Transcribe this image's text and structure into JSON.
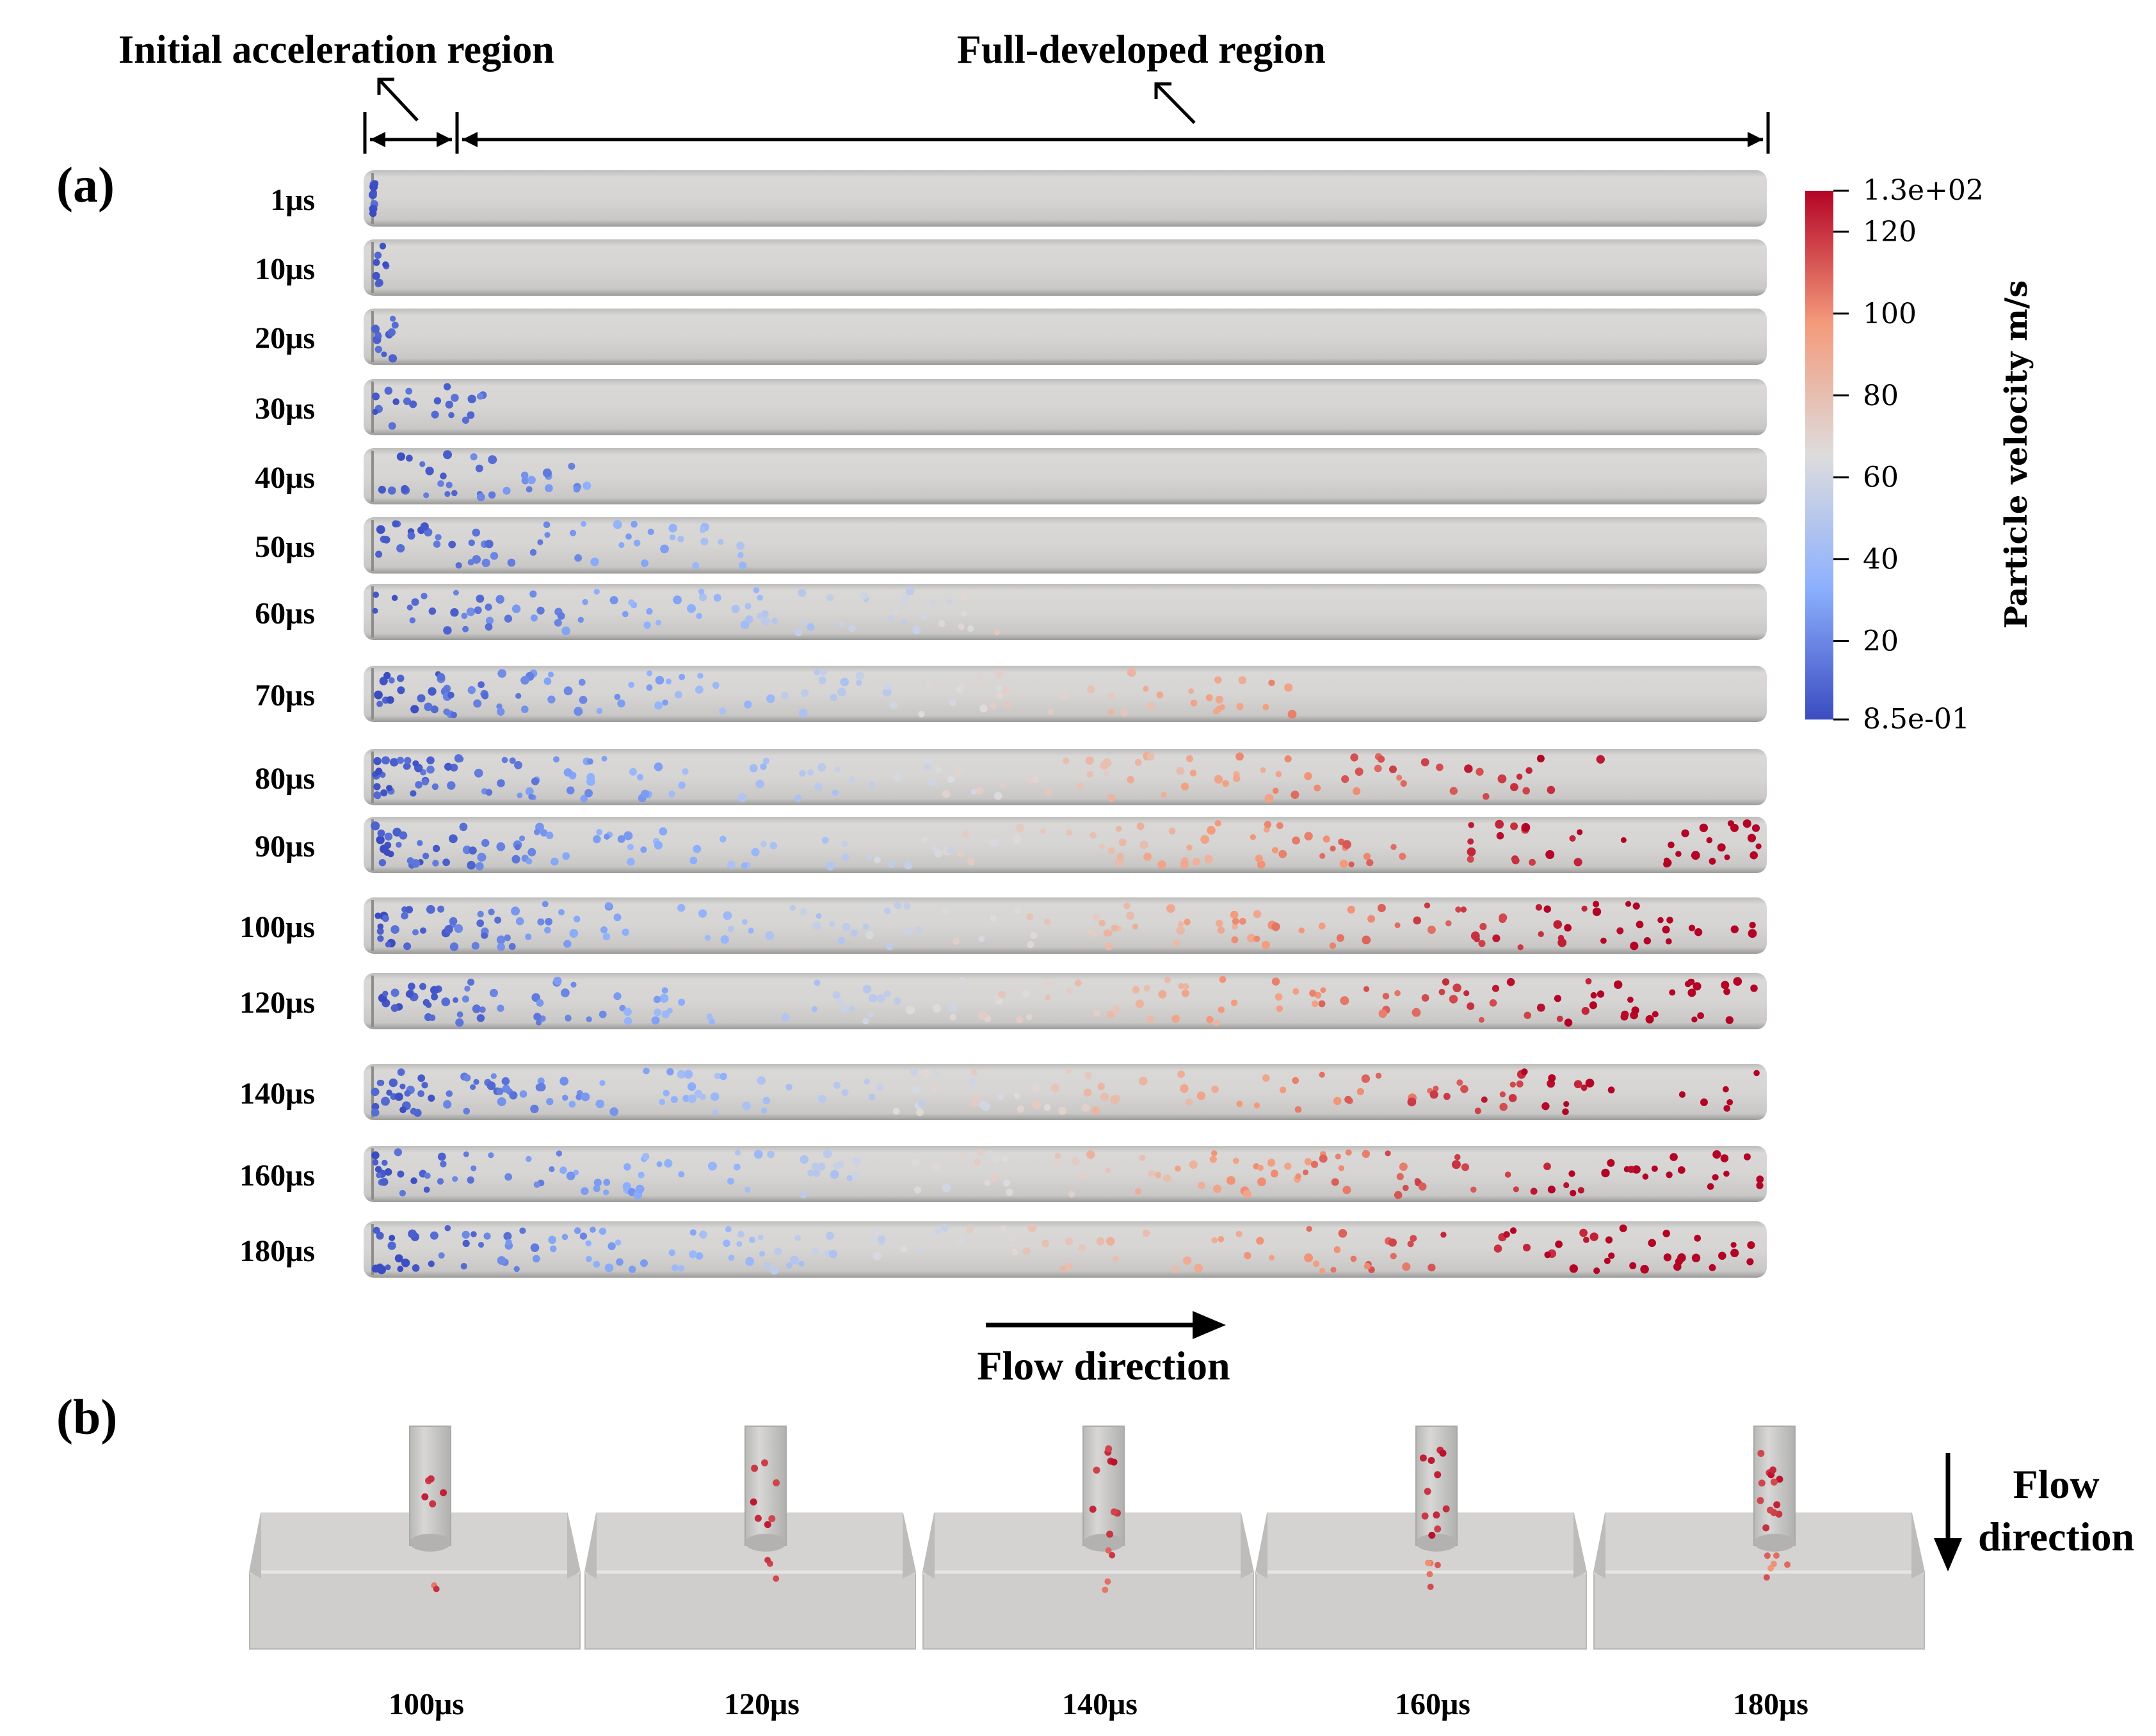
{
  "panel_a": {
    "label": "(a)",
    "region_initial": "Initial acceleration region",
    "region_full": "Full-developed region",
    "flow_label": "Flow direction",
    "time_labels": [
      "1μs",
      "10μs",
      "20μs",
      "30μs",
      "40μs",
      "50μs",
      "60μs",
      "70μs",
      "80μs",
      "90μs",
      "100μs",
      "120μs",
      "140μs",
      "160μs",
      "180μs"
    ],
    "particle_extent_fraction": [
      0.01,
      0.02,
      0.03,
      0.09,
      0.17,
      0.29,
      0.46,
      0.67,
      0.9,
      1.0,
      1.0,
      1.0,
      1.0,
      1.0,
      1.0
    ]
  },
  "colorbar": {
    "title": "Particle velocity m/s",
    "max_label": "1.3e+02",
    "min_label": "8.5e-01",
    "min_value": 0.85,
    "max_value": 130,
    "ticks": [
      {
        "value": 120,
        "label": "120"
      },
      {
        "value": 100,
        "label": "100"
      },
      {
        "value": 80,
        "label": "80"
      },
      {
        "value": 60,
        "label": "60"
      },
      {
        "value": 40,
        "label": "40"
      },
      {
        "value": 20,
        "label": "20"
      }
    ],
    "colors": [
      "#3b4cc0",
      "#8db0fe",
      "#dddcdc",
      "#f49a7b",
      "#b40426"
    ]
  },
  "panel_b": {
    "label": "(b)",
    "flow_label_line1": "Flow",
    "flow_label_line2": "direction",
    "time_labels": [
      "100μs",
      "120μs",
      "140μs",
      "160μs",
      "180μs"
    ]
  }
}
